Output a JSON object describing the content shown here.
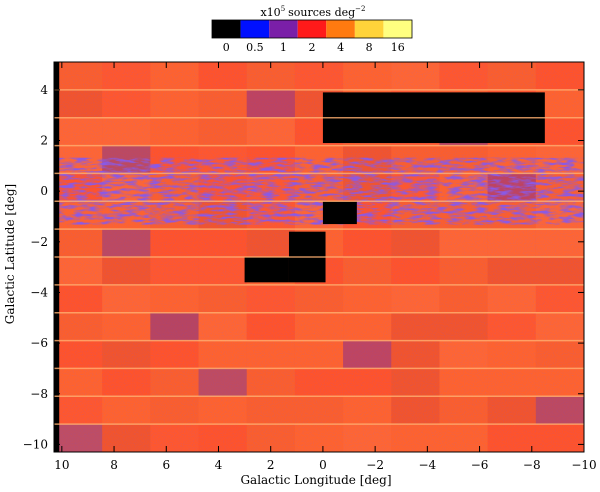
{
  "chart_data": {
    "type": "heatmap",
    "title": "",
    "xlabel": "Galactic Longitude [deg]",
    "ylabel": "Galactic Latitude [deg]",
    "xlim": [
      10.3,
      -10.0
    ],
    "ylim": [
      -10.3,
      5.1
    ],
    "x_ticks": [
      10,
      8,
      6,
      4,
      2,
      0,
      -2,
      -4,
      -6,
      -8,
      -10
    ],
    "y_ticks": [
      4,
      2,
      0,
      -2,
      -4,
      -6,
      -8,
      -10
    ],
    "x_tick_labels": [
      "10",
      "8",
      "6",
      "4",
      "2",
      "0",
      "−2",
      "−4",
      "−6",
      "−8",
      "−10"
    ],
    "y_tick_labels": [
      "4",
      "2",
      "0",
      "−2",
      "−4",
      "−6",
      "−8",
      "−10"
    ],
    "colorbar": {
      "label_base": "x10",
      "label_exp": "5",
      "label_unit": "sources deg",
      "label_unit_exp": "−2",
      "levels": [
        "0",
        "0.5",
        "1",
        "2",
        "4",
        "8",
        "16"
      ],
      "colors": [
        "#000000",
        "#0010ff",
        "#7a1fa8",
        "#ff1a1a",
        "#ff7a10",
        "#ffd33a",
        "#ffff80"
      ]
    },
    "background_color": "#ff5a2a",
    "no_data_regions": [
      {
        "l": [
          0.0,
          -8.5
        ],
        "b": [
          1.9,
          3.9
        ]
      },
      {
        "l": [
          0.0,
          -1.3
        ],
        "b": [
          -1.3,
          -0.4
        ]
      },
      {
        "l": [
          1.3,
          -0.1
        ],
        "b": [
          -3.6,
          -1.6
        ]
      },
      {
        "l": [
          3.0,
          1.3
        ],
        "b": [
          -3.6,
          -2.6
        ]
      },
      {
        "l": [
          10.3,
          10.1
        ],
        "b": [
          -10.3,
          5.1
        ]
      }
    ],
    "low_density_band": {
      "b_center": 0.0,
      "b_halfwidth": 0.6,
      "color": "#3a2ad8"
    }
  }
}
